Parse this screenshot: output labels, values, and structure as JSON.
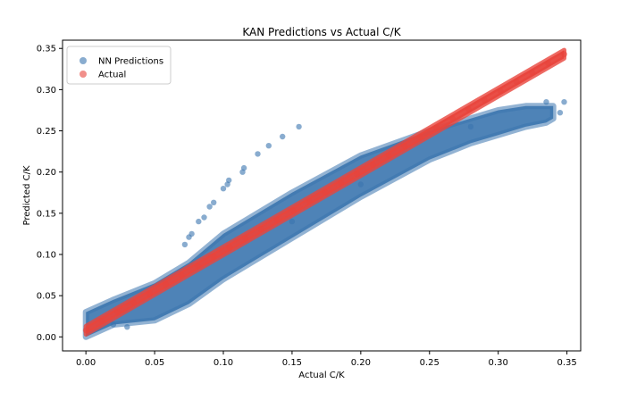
{
  "chart_data": {
    "type": "scatter",
    "title": "KAN Predictions vs Actual C/K",
    "xlabel": "Actual C/K",
    "ylabel": "Predicted C/K",
    "xlim": [
      -0.017,
      0.36
    ],
    "ylim": [
      -0.017,
      0.36
    ],
    "xticks": [
      0.0,
      0.05,
      0.1,
      0.15,
      0.2,
      0.25,
      0.3,
      0.35
    ],
    "yticks": [
      0.0,
      0.05,
      0.1,
      0.15,
      0.2,
      0.25,
      0.3,
      0.35
    ],
    "xtick_labels": [
      "0.00",
      "0.05",
      "0.10",
      "0.15",
      "0.20",
      "0.25",
      "0.30",
      "0.35"
    ],
    "ytick_labels": [
      "0.00",
      "0.05",
      "0.10",
      "0.15",
      "0.20",
      "0.25",
      "0.30",
      "0.35"
    ],
    "grid": false,
    "legend_position": "top-left",
    "series": [
      {
        "name": "NN Predictions",
        "color": "#3b75af",
        "alpha": 0.6,
        "band_x": [
          0.0,
          0.02,
          0.05,
          0.075,
          0.1,
          0.15,
          0.2,
          0.25,
          0.28,
          0.3,
          0.32,
          0.335,
          0.34
        ],
        "band_lower": [
          0.0,
          0.015,
          0.02,
          0.04,
          0.07,
          0.12,
          0.17,
          0.215,
          0.235,
          0.245,
          0.255,
          0.26,
          0.265
        ],
        "band_upper": [
          0.03,
          0.045,
          0.065,
          0.09,
          0.125,
          0.175,
          0.22,
          0.25,
          0.265,
          0.275,
          0.28,
          0.28,
          0.28
        ],
        "outliers": [
          {
            "x": 0.155,
            "y": 0.255
          },
          {
            "x": 0.143,
            "y": 0.243
          },
          {
            "x": 0.133,
            "y": 0.232
          },
          {
            "x": 0.125,
            "y": 0.222
          },
          {
            "x": 0.115,
            "y": 0.205
          },
          {
            "x": 0.114,
            "y": 0.2
          },
          {
            "x": 0.104,
            "y": 0.19
          },
          {
            "x": 0.103,
            "y": 0.185
          },
          {
            "x": 0.1,
            "y": 0.18
          },
          {
            "x": 0.093,
            "y": 0.163
          },
          {
            "x": 0.09,
            "y": 0.158
          },
          {
            "x": 0.086,
            "y": 0.145
          },
          {
            "x": 0.082,
            "y": 0.14
          },
          {
            "x": 0.077,
            "y": 0.125
          },
          {
            "x": 0.075,
            "y": 0.121
          },
          {
            "x": 0.072,
            "y": 0.112
          },
          {
            "x": 0.15,
            "y": 0.14
          },
          {
            "x": 0.2,
            "y": 0.185
          },
          {
            "x": 0.28,
            "y": 0.255
          },
          {
            "x": 0.335,
            "y": 0.285
          },
          {
            "x": 0.348,
            "y": 0.285
          },
          {
            "x": 0.345,
            "y": 0.272
          },
          {
            "x": 0.03,
            "y": 0.012
          },
          {
            "x": 0.02,
            "y": 0.015
          }
        ]
      },
      {
        "name": "Actual",
        "color": "#e8453c",
        "alpha": 0.6,
        "line_x": [
          0.0,
          0.348
        ],
        "line_y": [
          0.008,
          0.343
        ],
        "band_width": 0.005
      }
    ]
  }
}
